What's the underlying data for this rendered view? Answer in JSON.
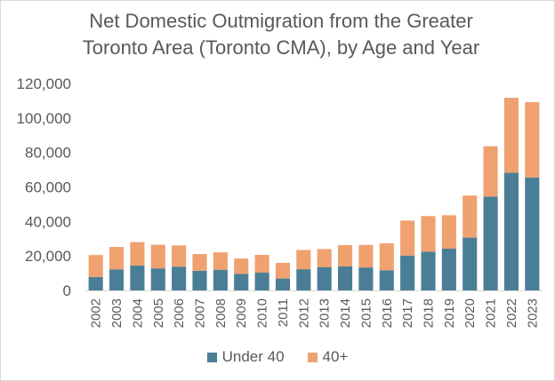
{
  "chart_data": {
    "type": "bar",
    "stacked": true,
    "title_lines": [
      "Net Domestic Outmigration from the Greater",
      "Toronto Area (Toronto CMA), by Age and Year"
    ],
    "xlabel": "",
    "ylabel": "",
    "ylim": [
      0,
      120000
    ],
    "yticks": [
      0,
      20000,
      40000,
      60000,
      80000,
      100000,
      120000
    ],
    "ytick_labels": [
      "0",
      "20,000",
      "40,000",
      "60,000",
      "80,000",
      "100,000",
      "120,000"
    ],
    "grid": false,
    "legend_position": "bottom",
    "categories": [
      "2002",
      "2003",
      "2004",
      "2005",
      "2006",
      "2007",
      "2008",
      "2009",
      "2010",
      "2011",
      "2012",
      "2013",
      "2014",
      "2015",
      "2016",
      "2017",
      "2018",
      "2019",
      "2020",
      "2021",
      "2022",
      "2023"
    ],
    "series": [
      {
        "name": "Under 40",
        "color": "#4a7e96",
        "values": [
          7800,
          12200,
          14400,
          12800,
          13800,
          11400,
          12000,
          9600,
          10300,
          6900,
          12300,
          13400,
          13900,
          13300,
          11700,
          20200,
          22500,
          24200,
          30600,
          54400,
          68300,
          65500
        ]
      },
      {
        "name": "40+",
        "color": "#f0a170",
        "values": [
          12700,
          13000,
          13600,
          13700,
          12300,
          9700,
          10100,
          8900,
          10300,
          9100,
          11200,
          10600,
          12400,
          13100,
          15600,
          20300,
          20600,
          19400,
          24400,
          29200,
          43400,
          43700
        ]
      }
    ]
  }
}
